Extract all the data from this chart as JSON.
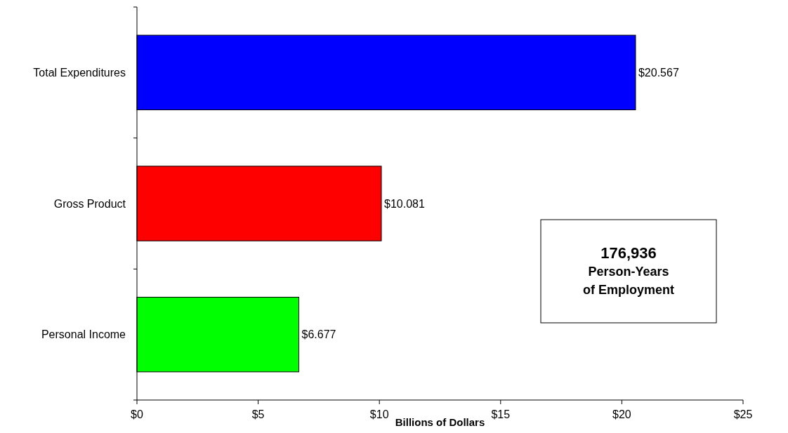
{
  "chart_data": {
    "type": "bar",
    "orientation": "horizontal",
    "xlabel": "Billions of Dollars",
    "categories": [
      "Total Expenditures",
      "Gross Product",
      "Personal Income"
    ],
    "values": [
      20.567,
      10.081,
      6.677
    ],
    "colors": [
      "#0000ff",
      "#ff0000",
      "#00ff00"
    ],
    "value_labels": [
      "$20.567",
      "$10.081",
      "$6.677"
    ],
    "xlim": [
      0,
      25
    ],
    "xticks": [
      {
        "value": 0,
        "label": "$0"
      },
      {
        "value": 5,
        "label": "$5"
      },
      {
        "value": 10,
        "label": "$10"
      },
      {
        "value": 15,
        "label": "$15"
      },
      {
        "value": 20,
        "label": "$20"
      },
      {
        "value": 25,
        "label": "$25"
      }
    ],
    "grid": false,
    "annotations": [
      "176,936\nPerson-Years\nof Employment"
    ]
  }
}
